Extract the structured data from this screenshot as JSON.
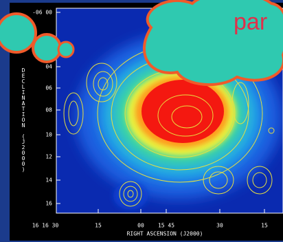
{
  "map": {
    "y_ticks": [
      "-06 00",
      "04",
      "06",
      "08",
      "10",
      "12",
      "14",
      "16"
    ],
    "y_title": "DECLINATION (J2000)",
    "x_ticks": [
      "16 16 30",
      "15",
      "00",
      "15 45",
      "30",
      "15"
    ],
    "x_title": "RIGHT ASCENSION (J2000)"
  },
  "callout": {
    "text": "par"
  }
}
